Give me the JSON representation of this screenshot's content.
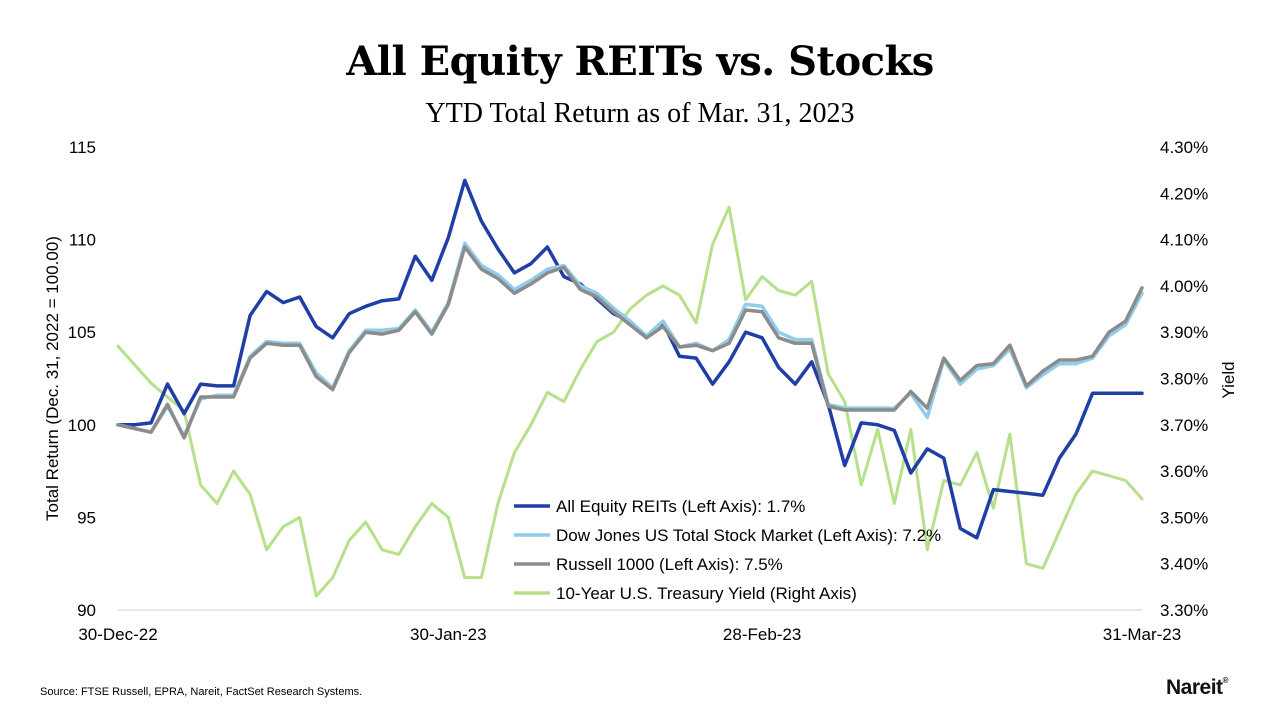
{
  "title": "All Equity REITs vs. Stocks",
  "subtitle": "YTD Total Return as of Mar. 31, 2023",
  "source": "Source: FTSE Russell, EPRA, Nareit, FactSet Research Systems.",
  "logo_text": "Nareit",
  "chart_data": {
    "type": "line",
    "title": "All Equity REITs vs. Stocks",
    "subtitle": "YTD Total Return as of Mar. 31, 2023",
    "ylabel": "Total Return (Dec. 31, 2022 = 100.00)",
    "y2label": "Yield",
    "ylim": [
      90,
      115
    ],
    "y_ticks": [
      "90",
      "95",
      "100",
      "105",
      "110",
      "115"
    ],
    "y2lim": [
      3.3,
      4.3
    ],
    "y2_ticks": [
      "3.30%",
      "3.40%",
      "3.50%",
      "3.60%",
      "3.70%",
      "3.80%",
      "3.90%",
      "4.00%",
      "4.10%",
      "4.20%",
      "4.30%"
    ],
    "x_ticks": [
      "30-Dec-22",
      "30-Jan-23",
      "28-Feb-23",
      "31-Mar-23"
    ],
    "grid": false,
    "legend_position": "bottom-center",
    "x": [
      "2022-12-30",
      "2023-01-03",
      "2023-01-04",
      "2023-01-05",
      "2023-01-06",
      "2023-01-09",
      "2023-01-10",
      "2023-01-11",
      "2023-01-12",
      "2023-01-13",
      "2023-01-17",
      "2023-01-18",
      "2023-01-19",
      "2023-01-20",
      "2023-01-23",
      "2023-01-24",
      "2023-01-25",
      "2023-01-26",
      "2023-01-27",
      "2023-01-30",
      "2023-01-31",
      "2023-02-01",
      "2023-02-02",
      "2023-02-03",
      "2023-02-06",
      "2023-02-07",
      "2023-02-08",
      "2023-02-09",
      "2023-02-10",
      "2023-02-13",
      "2023-02-14",
      "2023-02-15",
      "2023-02-16",
      "2023-02-17",
      "2023-02-21",
      "2023-02-22",
      "2023-02-23",
      "2023-02-24",
      "2023-02-27",
      "2023-02-28",
      "2023-03-01",
      "2023-03-02",
      "2023-03-03",
      "2023-03-06",
      "2023-03-07",
      "2023-03-08",
      "2023-03-09",
      "2023-03-10",
      "2023-03-13",
      "2023-03-14",
      "2023-03-15",
      "2023-03-16",
      "2023-03-17",
      "2023-03-20",
      "2023-03-21",
      "2023-03-22",
      "2023-03-23",
      "2023-03-24",
      "2023-03-27",
      "2023-03-28",
      "2023-03-29",
      "2023-03-30",
      "2023-03-31"
    ],
    "series": [
      {
        "name": "All Equity REITs (Left Axis): 1.7%",
        "axis": "left",
        "color": "#1f3fa6",
        "values": [
          100.0,
          100.0,
          100.1,
          102.2,
          100.6,
          102.2,
          102.1,
          102.1,
          105.9,
          107.2,
          106.6,
          106.9,
          105.3,
          104.7,
          106.0,
          106.4,
          106.7,
          106.8,
          109.1,
          107.8,
          110.1,
          113.2,
          111.0,
          109.5,
          108.2,
          108.7,
          109.6,
          108.0,
          107.6,
          106.8,
          106.0,
          105.6,
          104.7,
          105.5,
          103.7,
          103.6,
          102.2,
          103.4,
          105.0,
          104.7,
          103.1,
          102.2,
          103.4,
          101.1,
          97.8,
          100.1,
          100.0,
          99.7,
          97.4,
          98.7,
          98.2,
          94.4,
          93.9,
          96.5,
          96.4,
          96.3,
          96.2,
          98.2,
          99.5,
          101.7,
          101.7,
          101.7,
          101.7
        ]
      },
      {
        "name": "Dow Jones US Total Stock Market (Left Axis): 7.2%",
        "axis": "left",
        "color": "#8fcdea",
        "values": [
          100.0,
          99.8,
          99.6,
          101.0,
          99.4,
          101.4,
          101.6,
          101.6,
          103.7,
          104.5,
          104.4,
          104.4,
          102.8,
          102.0,
          104.0,
          105.1,
          105.1,
          105.2,
          106.2,
          105.0,
          106.6,
          109.8,
          108.6,
          108.1,
          107.3,
          107.8,
          108.4,
          108.6,
          107.5,
          107.1,
          106.3,
          105.6,
          104.8,
          105.6,
          104.2,
          104.4,
          104.0,
          104.6,
          106.5,
          106.4,
          105.0,
          104.6,
          104.6,
          101.1,
          100.9,
          100.9,
          100.9,
          100.9,
          101.7,
          100.4,
          103.5,
          102.2,
          103.0,
          103.2,
          104.1,
          102.0,
          102.7,
          103.3,
          103.3,
          103.6,
          104.8,
          105.4,
          107.1
        ]
      },
      {
        "name": "Russell 1000 (Left Axis): 7.5%",
        "axis": "left",
        "color": "#8c8c8c",
        "values": [
          100.0,
          99.8,
          99.6,
          101.1,
          99.3,
          101.5,
          101.5,
          101.5,
          103.6,
          104.4,
          104.3,
          104.3,
          102.6,
          101.9,
          103.9,
          105.0,
          104.9,
          105.1,
          106.1,
          104.9,
          106.5,
          109.6,
          108.4,
          107.9,
          107.1,
          107.6,
          108.2,
          108.5,
          107.3,
          106.9,
          106.1,
          105.4,
          104.7,
          105.3,
          104.2,
          104.3,
          104.0,
          104.4,
          106.2,
          106.1,
          104.7,
          104.4,
          104.4,
          101.0,
          100.8,
          100.8,
          100.8,
          100.8,
          101.8,
          100.9,
          103.6,
          102.4,
          103.2,
          103.3,
          104.3,
          102.1,
          102.9,
          103.5,
          103.5,
          103.7,
          105.0,
          105.6,
          107.4
        ]
      },
      {
        "name": "10-Year U.S. Treasury Yield (Right Axis)",
        "axis": "right",
        "color": "#b6e08a",
        "values": [
          3.87,
          3.83,
          3.79,
          3.76,
          3.73,
          3.57,
          3.53,
          3.6,
          3.55,
          3.43,
          3.48,
          3.5,
          3.33,
          3.37,
          3.45,
          3.49,
          3.43,
          3.42,
          3.48,
          3.53,
          3.5,
          3.37,
          3.37,
          3.53,
          3.64,
          3.7,
          3.77,
          3.75,
          3.82,
          3.88,
          3.9,
          3.95,
          3.98,
          4.0,
          3.98,
          3.92,
          4.09,
          4.17,
          3.97,
          4.02,
          3.99,
          3.98,
          4.01,
          3.81,
          3.75,
          3.57,
          3.69,
          3.53,
          3.69,
          3.43,
          3.58,
          3.57,
          3.64,
          3.52,
          3.68,
          3.4,
          3.39,
          3.47,
          3.55,
          3.6,
          3.59,
          3.58,
          3.54
        ]
      }
    ]
  }
}
